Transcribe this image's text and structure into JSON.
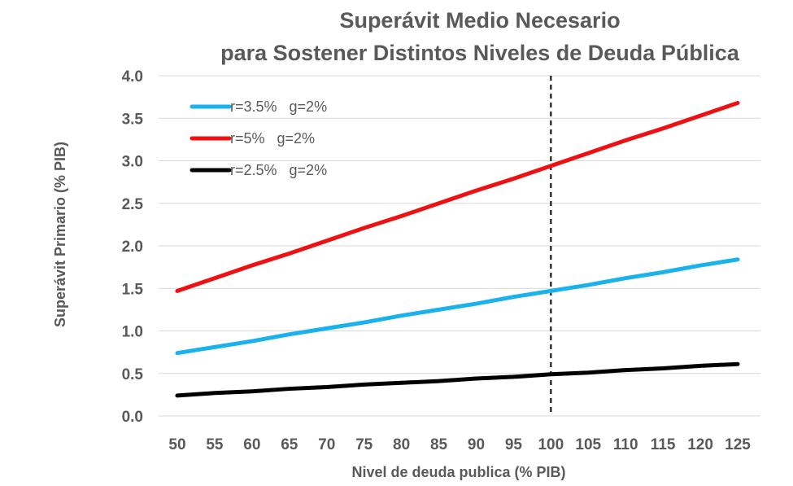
{
  "chart_data": {
    "type": "line",
    "title": "Superávit Medio Necesario",
    "subtitle": "para Sostener Distintos Niveles de Deuda Pública",
    "xlabel": "Nivel de deuda publica (% PIB)",
    "ylabel": "Superávit Primario (% PIB)",
    "x": [
      50,
      55,
      60,
      65,
      70,
      75,
      80,
      85,
      90,
      95,
      100,
      105,
      110,
      115,
      120,
      125
    ],
    "ylim": [
      0,
      4
    ],
    "yticks": [
      "0.0",
      "0.5",
      "1.0",
      "1.5",
      "2.0",
      "2.5",
      "3.0",
      "3.5",
      "4.0"
    ],
    "grid": "horizontal",
    "legend_position": "top-left",
    "reference_line": {
      "x": 100,
      "style": "dashed"
    },
    "series": [
      {
        "name": "r=3.5%   g=2%",
        "color": "#1ab2ec",
        "values": [
          0.74,
          0.81,
          0.88,
          0.96,
          1.03,
          1.1,
          1.18,
          1.25,
          1.32,
          1.4,
          1.47,
          1.54,
          1.62,
          1.69,
          1.77,
          1.84
        ]
      },
      {
        "name": "r=5%   g=2%",
        "color": "#ee1111",
        "values": [
          1.47,
          1.62,
          1.77,
          1.91,
          2.06,
          2.21,
          2.35,
          2.5,
          2.65,
          2.79,
          2.94,
          3.09,
          3.24,
          3.38,
          3.53,
          3.68
        ]
      },
      {
        "name": "r=2.5%   g=2%",
        "color": "#000000",
        "values": [
          0.24,
          0.27,
          0.29,
          0.32,
          0.34,
          0.37,
          0.39,
          0.41,
          0.44,
          0.46,
          0.49,
          0.51,
          0.54,
          0.56,
          0.59,
          0.61
        ]
      }
    ]
  }
}
